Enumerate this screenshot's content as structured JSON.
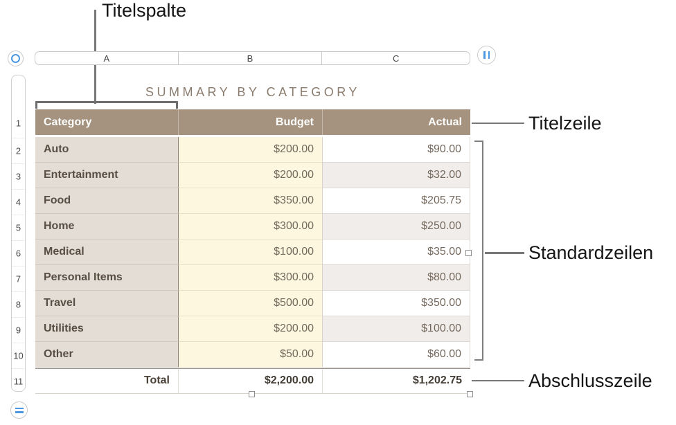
{
  "annotations": {
    "title_column": "Titelspalte",
    "title_row": "Titelzeile",
    "standard_rows": "Standardzeilen",
    "footer_row": "Abschlusszeile"
  },
  "column_bar": {
    "letters": [
      "A",
      "B",
      "C"
    ]
  },
  "row_bar": {
    "numbers": [
      "1",
      "2",
      "3",
      "4",
      "5",
      "6",
      "7",
      "8",
      "9",
      "10",
      "11"
    ]
  },
  "table": {
    "title": "SUMMARY BY CATEGORY",
    "header": [
      "Category",
      "Budget",
      "Actual"
    ],
    "rows": [
      [
        "Auto",
        "$200.00",
        "$90.00"
      ],
      [
        "Entertainment",
        "$200.00",
        "$32.00"
      ],
      [
        "Food",
        "$350.00",
        "$205.75"
      ],
      [
        "Home",
        "$300.00",
        "$250.00"
      ],
      [
        "Medical",
        "$100.00",
        "$35.00"
      ],
      [
        "Personal Items",
        "$300.00",
        "$80.00"
      ],
      [
        "Travel",
        "$500.00",
        "$350.00"
      ],
      [
        "Utilities",
        "$200.00",
        "$100.00"
      ],
      [
        "Other",
        "$50.00",
        "$60.00"
      ]
    ],
    "footer": [
      "Total",
      "$2,200.00",
      "$1,202.75"
    ]
  },
  "colors": {
    "header_row_bg": "#a5937f",
    "header_column_bg": "#e3ddd6",
    "budget_column_bg": "#fcf7de",
    "alternating_row_bg": "#f0edea",
    "accent_blue": "#4a97e3",
    "table_title_text": "#8a7c6e"
  }
}
